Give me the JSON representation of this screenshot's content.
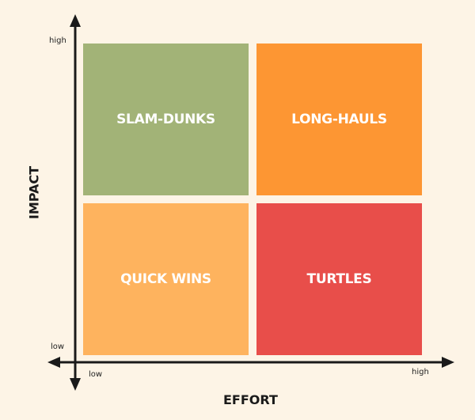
{
  "quadrants": {
    "top_left": {
      "label": "SLAM-DUNKS",
      "color": "#a2b377"
    },
    "top_right": {
      "label": "LONG-HAULS",
      "color": "#fd9633"
    },
    "bottom_left": {
      "label": "QUICK WINS",
      "color": "#feb35e"
    },
    "bottom_right": {
      "label": "TURTLES",
      "color": "#e84e4a"
    }
  },
  "y_axis": {
    "title": "IMPACT",
    "high_label": "high",
    "low_label": "low"
  },
  "x_axis": {
    "title": "EFFORT",
    "low_label": "low",
    "high_label": "high"
  },
  "colors": {
    "background": "#fdf4e6",
    "axis": "#1a1a1a"
  }
}
